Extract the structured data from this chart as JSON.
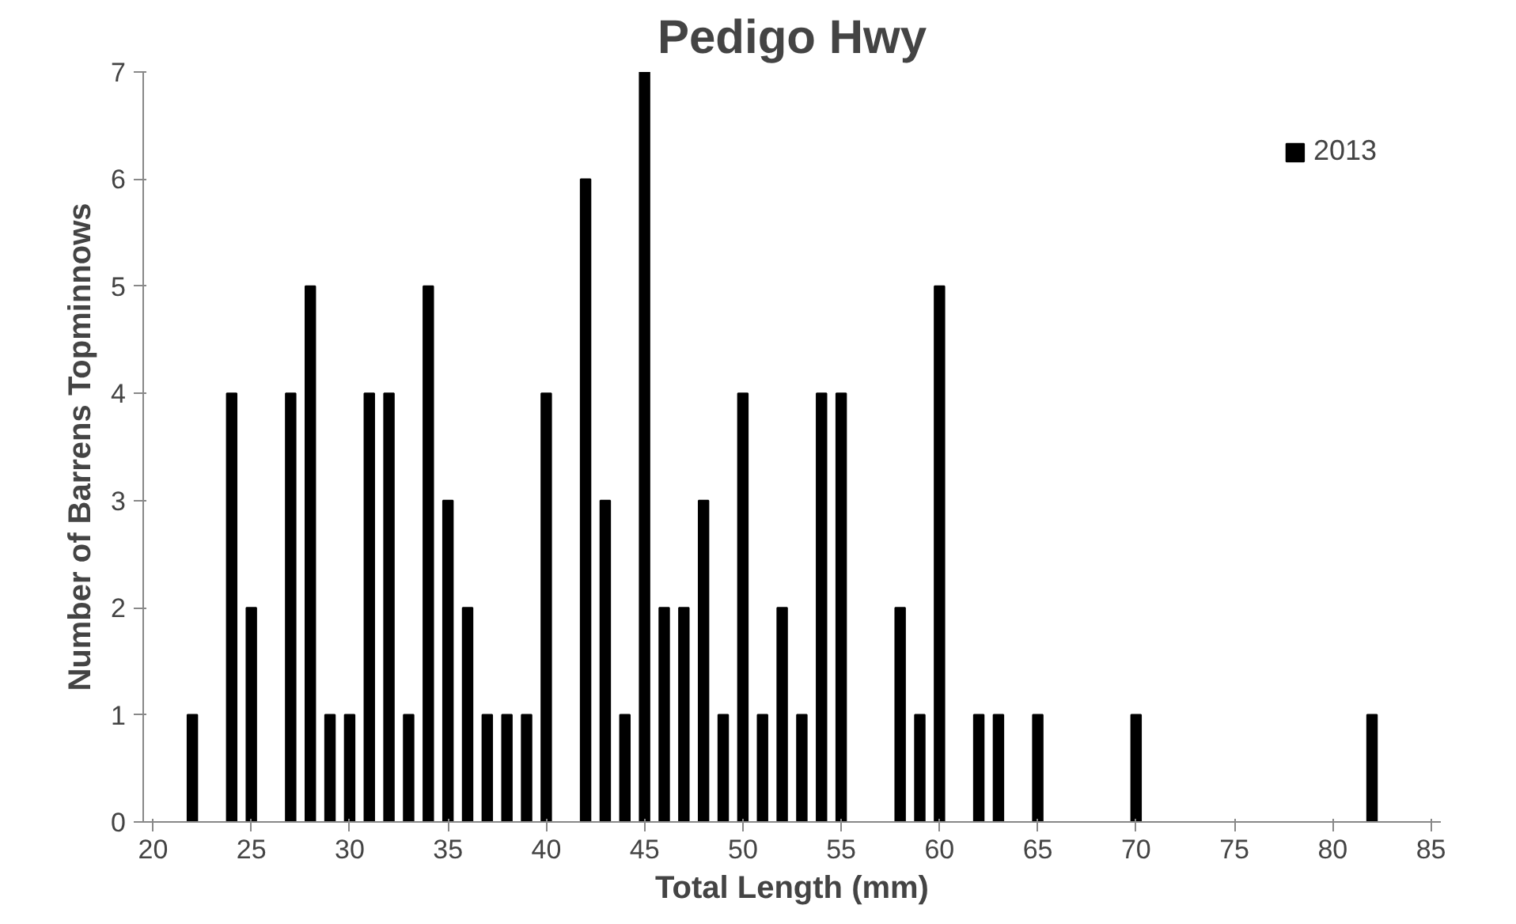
{
  "chart_data": {
    "type": "bar",
    "title": "Pedigo Hwy",
    "xlabel": "Total Length (mm)",
    "ylabel": "Number of Barrens Topminnows",
    "x": [
      22,
      24,
      25,
      27,
      28,
      29,
      30,
      31,
      32,
      33,
      34,
      35,
      36,
      37,
      38,
      39,
      40,
      42,
      43,
      44,
      45,
      46,
      47,
      48,
      49,
      50,
      51,
      52,
      53,
      54,
      55,
      58,
      59,
      60,
      62,
      63,
      65,
      70,
      82
    ],
    "series": [
      {
        "name": "2013",
        "color": "#000000",
        "values": [
          1,
          4,
          2,
          4,
          5,
          1,
          1,
          4,
          4,
          1,
          5,
          3,
          2,
          1,
          1,
          1,
          4,
          6,
          3,
          1,
          7,
          2,
          2,
          3,
          1,
          4,
          1,
          2,
          1,
          4,
          4,
          2,
          1,
          5,
          1,
          1,
          1,
          1,
          1
        ]
      }
    ],
    "xlim": [
      19.5,
      85.5
    ],
    "xticks": [
      20,
      25,
      30,
      35,
      40,
      45,
      50,
      55,
      60,
      65,
      70,
      75,
      80,
      85
    ],
    "ylim": [
      0,
      7
    ],
    "yticks": [
      0,
      1,
      2,
      3,
      4,
      5,
      6,
      7
    ],
    "grid": false,
    "legend": "top right"
  }
}
